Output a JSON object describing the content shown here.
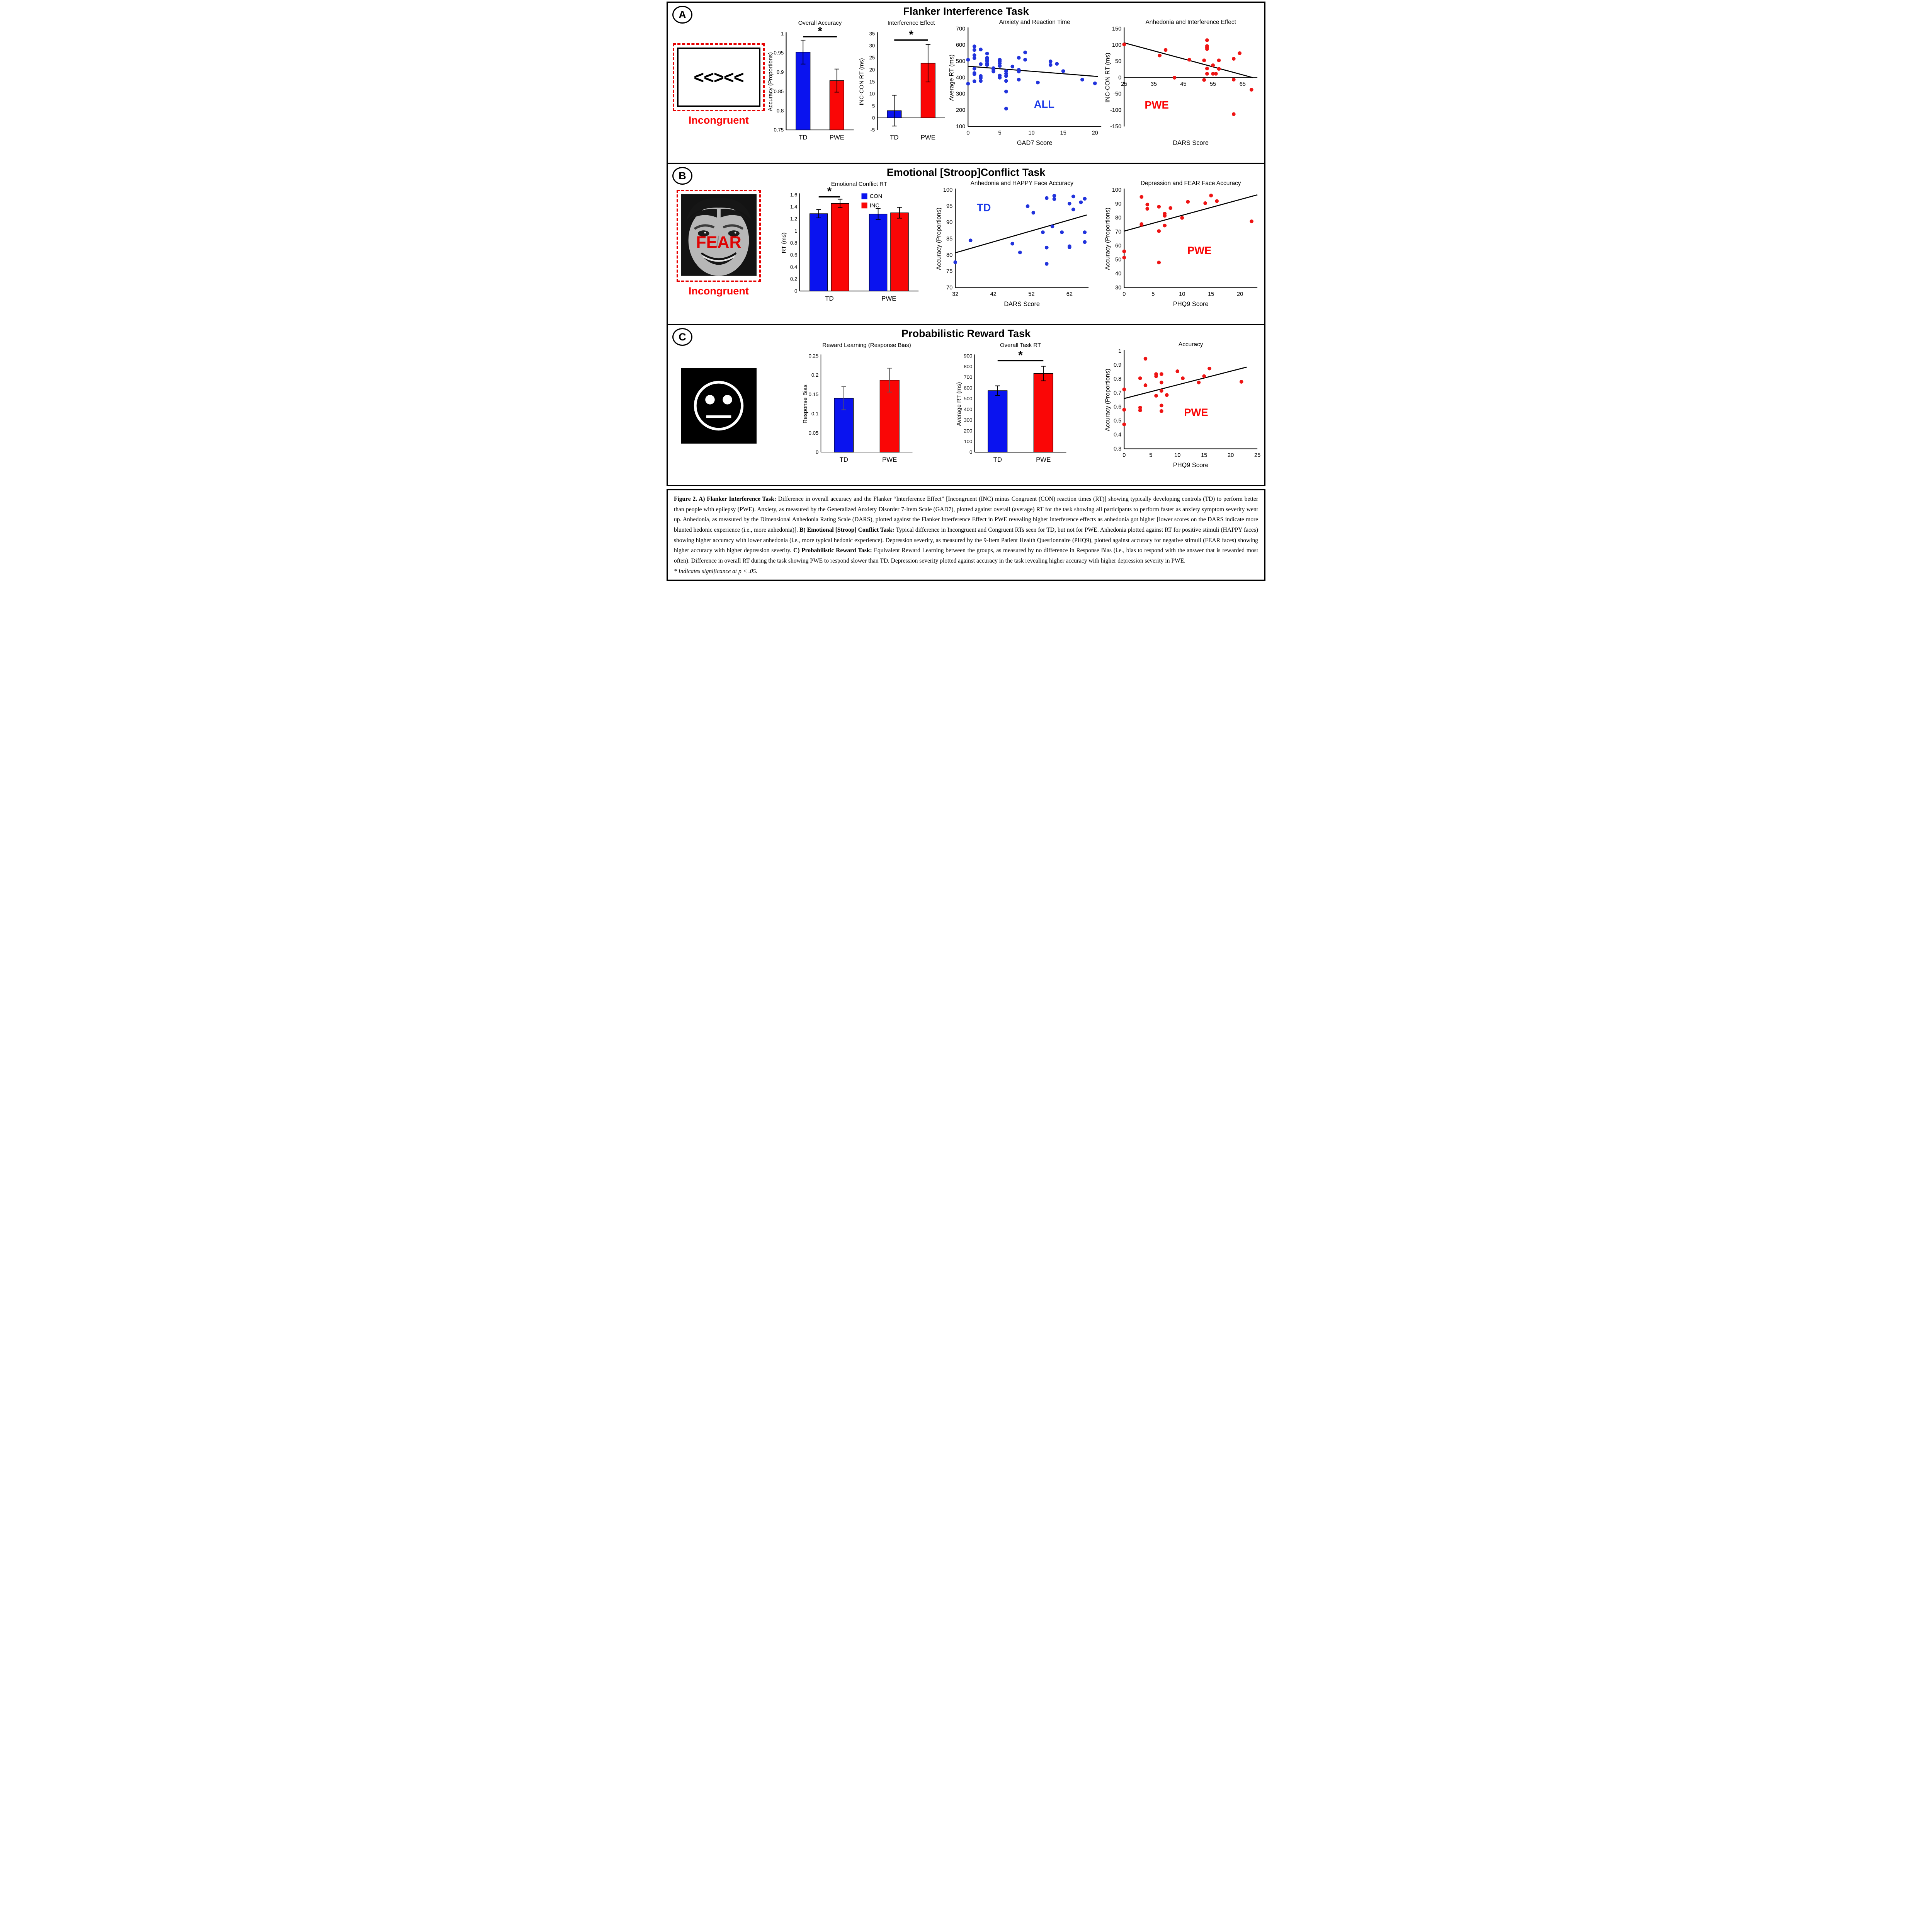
{
  "figure": {
    "panels": [
      {
        "label": "A",
        "title": "Flanker Interference Task",
        "stimulus": {
          "kind": "flanker",
          "text": "<<><<",
          "caption": "Incongruent"
        }
      },
      {
        "label": "B",
        "title": "Emotional [Stroop]Conflict Task",
        "stimulus": {
          "kind": "face",
          "overlay": "FEAR",
          "caption": "Incongruent"
        }
      },
      {
        "label": "C",
        "title": "Probabilistic Reward Task",
        "stimulus": {
          "kind": "smiley"
        }
      }
    ]
  },
  "colors": {
    "blue": "#0A13EF",
    "red": "#FA0606",
    "dot_blue": "#2133DC",
    "dot_red": "#EE1414",
    "label_blue": "#1D3BE8",
    "label_red": "#FA0606"
  },
  "chart_data": [
    {
      "id": "a1",
      "type": "bar",
      "title": "Overall Accuracy",
      "ylabel": "Accuracy (Proportions)",
      "ylim": [
        0.75,
        1
      ],
      "yticks": [
        0.75,
        0.8,
        0.85,
        0.9,
        0.95,
        1
      ],
      "categories": [
        "TD",
        "PWE"
      ],
      "values": [
        0.952,
        0.878
      ],
      "errors": [
        0.031,
        0.03
      ],
      "bar_colors": [
        "blue",
        "red"
      ],
      "sig": {
        "i1": 0,
        "i2": 1,
        "y": 0.992,
        "star": "*"
      }
    },
    {
      "id": "a2",
      "type": "bar",
      "title": "Interference Effect",
      "ylabel": "INC-CON RT (ms)",
      "ylim": [
        -5,
        35
      ],
      "yticks": [
        -5,
        0,
        5,
        10,
        15,
        20,
        25,
        30,
        35
      ],
      "categories": [
        "TD",
        "PWE"
      ],
      "values": [
        3,
        22.7
      ],
      "errors": [
        6.4,
        7.8
      ],
      "bar_colors": [
        "blue",
        "red"
      ],
      "sig": {
        "i1": 0,
        "i2": 1,
        "y": 32.3,
        "star": "*"
      }
    },
    {
      "id": "a3",
      "type": "scatter",
      "title": "Anxiety and Reaction Time",
      "xlabel": "GAD7 Score",
      "ylabel": "Average RT (ms)",
      "xlim": [
        0,
        21
      ],
      "ylim": [
        100,
        700
      ],
      "xticks": [
        0,
        5,
        10,
        15,
        20
      ],
      "yticks": [
        100,
        200,
        300,
        400,
        500,
        600,
        700
      ],
      "point_color": "dot_blue",
      "trend": [
        [
          0,
          470
        ],
        [
          20.5,
          407
        ]
      ],
      "label": {
        "text": "ALL",
        "x": 12,
        "y": 215,
        "color": "label_blue"
      },
      "points": [
        [
          0,
          510
        ],
        [
          0,
          363
        ],
        [
          1,
          592
        ],
        [
          1,
          570
        ],
        [
          1,
          538
        ],
        [
          1,
          520
        ],
        [
          1,
          455
        ],
        [
          1,
          428
        ],
        [
          1,
          422
        ],
        [
          1,
          378
        ],
        [
          2,
          573
        ],
        [
          2,
          483
        ],
        [
          2,
          410
        ],
        [
          2,
          398
        ],
        [
          2,
          380
        ],
        [
          3,
          548
        ],
        [
          3,
          522
        ],
        [
          3,
          515
        ],
        [
          3,
          503
        ],
        [
          3,
          488
        ],
        [
          3,
          478
        ],
        [
          4,
          458
        ],
        [
          4,
          448
        ],
        [
          4,
          438
        ],
        [
          5,
          510
        ],
        [
          5,
          502
        ],
        [
          5,
          488
        ],
        [
          5,
          472
        ],
        [
          5,
          413
        ],
        [
          5,
          400
        ],
        [
          6,
          440
        ],
        [
          6,
          425
        ],
        [
          6,
          410
        ],
        [
          6,
          380
        ],
        [
          6,
          315
        ],
        [
          6,
          210
        ],
        [
          7,
          468
        ],
        [
          8,
          522
        ],
        [
          8,
          448
        ],
        [
          8,
          438
        ],
        [
          8,
          388
        ],
        [
          9,
          555
        ],
        [
          9,
          510
        ],
        [
          11,
          370
        ],
        [
          13,
          500
        ],
        [
          13,
          478
        ],
        [
          14,
          485
        ],
        [
          15,
          440
        ],
        [
          18,
          388
        ],
        [
          20,
          365
        ]
      ]
    },
    {
      "id": "a4",
      "type": "scatter",
      "title": "Anhedonia and Interference Effect",
      "xlabel": "DARS Score",
      "ylabel": "INC-CON RT (ms)",
      "xlim": [
        25,
        70
      ],
      "ylim": [
        -150,
        150
      ],
      "xticks": [
        25,
        35,
        45,
        55,
        65
      ],
      "yticks": [
        -150,
        -100,
        -50,
        0,
        50,
        100,
        150
      ],
      "x_axis_at": 0,
      "point_color": "dot_red",
      "trend": [
        [
          25,
          107
        ],
        [
          68.5,
          0
        ]
      ],
      "label": {
        "text": "PWE",
        "x": 36,
        "y": -95,
        "color": "label_red"
      },
      "points": [
        [
          25,
          102
        ],
        [
          37,
          68
        ],
        [
          39,
          85
        ],
        [
          42,
          0
        ],
        [
          47,
          55
        ],
        [
          52,
          53
        ],
        [
          52,
          -7
        ],
        [
          53,
          115
        ],
        [
          53,
          97
        ],
        [
          53,
          93
        ],
        [
          53,
          88
        ],
        [
          53,
          28
        ],
        [
          53,
          12
        ],
        [
          55,
          38
        ],
        [
          55,
          12
        ],
        [
          56,
          12
        ],
        [
          57,
          53
        ],
        [
          57,
          27
        ],
        [
          62,
          58
        ],
        [
          62,
          -6
        ],
        [
          62,
          -112
        ],
        [
          64,
          75
        ],
        [
          68,
          -37
        ]
      ]
    },
    {
      "id": "b1",
      "type": "bar",
      "title": "Emotional Conflict RT",
      "ylabel": "RT (ms)",
      "ylim": [
        0,
        1.6
      ],
      "yticks": [
        0,
        0.2,
        0.4,
        0.6,
        0.8,
        1,
        1.2,
        1.4,
        1.6
      ],
      "groups": [
        "TD",
        "PWE"
      ],
      "series": [
        {
          "name": "CON",
          "color": "blue",
          "values": [
            1.285,
            1.28
          ],
          "errors": [
            0.07,
            0.09
          ]
        },
        {
          "name": "INC",
          "color": "red",
          "values": [
            1.455,
            1.3
          ],
          "errors": [
            0.07,
            0.09
          ]
        }
      ],
      "legend": true,
      "sig": {
        "i1": 0,
        "i2": 1,
        "y": 1.565,
        "star": "*"
      }
    },
    {
      "id": "b2",
      "type": "scatter",
      "title": "Anhedonia and HAPPY Face Accuracy",
      "xlabel": "DARS Score",
      "ylabel": "Accuracy (Proportions)",
      "xlim": [
        32,
        67
      ],
      "ylim": [
        70,
        100
      ],
      "xticks": [
        32,
        42,
        52,
        62
      ],
      "yticks": [
        70,
        75,
        80,
        85,
        90,
        95,
        100
      ],
      "point_color": "dot_blue",
      "trend": [
        [
          32,
          80.7
        ],
        [
          66.5,
          92.3
        ]
      ],
      "label": {
        "text": "TD",
        "x": 39.5,
        "y": 93.5,
        "color": "label_blue"
      },
      "points": [
        [
          32,
          77.8
        ],
        [
          36,
          84.5
        ],
        [
          47,
          83.5
        ],
        [
          49,
          80.8
        ],
        [
          51,
          95
        ],
        [
          52.5,
          93
        ],
        [
          55,
          87
        ],
        [
          56,
          97.5
        ],
        [
          56,
          82.3
        ],
        [
          56,
          77.3
        ],
        [
          57.5,
          88.8
        ],
        [
          58,
          98.2
        ],
        [
          58,
          97.2
        ],
        [
          60,
          87
        ],
        [
          62,
          95.8
        ],
        [
          62,
          82.7
        ],
        [
          62,
          82.4
        ],
        [
          63,
          98
        ],
        [
          63,
          94
        ],
        [
          65,
          96.2
        ],
        [
          66,
          97.3
        ],
        [
          66,
          87
        ],
        [
          66,
          84
        ]
      ]
    },
    {
      "id": "b3",
      "type": "scatter",
      "title": "Depression and FEAR Face Accuracy",
      "xlabel": "PHQ9 Score",
      "ylabel": "Accuracy (Proportions)",
      "xlim": [
        0,
        23
      ],
      "ylim": [
        30,
        100
      ],
      "xticks": [
        0,
        5,
        10,
        15,
        20
      ],
      "yticks": [
        30,
        40,
        50,
        60,
        70,
        80,
        90,
        100
      ],
      "point_color": "dot_red",
      "trend": [
        [
          0,
          70.5
        ],
        [
          23,
          96.5
        ]
      ],
      "label": {
        "text": "PWE",
        "x": 13,
        "y": 54,
        "color": "label_red"
      },
      "points": [
        [
          0,
          56
        ],
        [
          0,
          51.5
        ],
        [
          3,
          95
        ],
        [
          3,
          75.5
        ],
        [
          3,
          75
        ],
        [
          4,
          89.5
        ],
        [
          4,
          86.5
        ],
        [
          6,
          88
        ],
        [
          6,
          70.5
        ],
        [
          6,
          48
        ],
        [
          7,
          83
        ],
        [
          7,
          81.5
        ],
        [
          7,
          74.5
        ],
        [
          8,
          87
        ],
        [
          10,
          80
        ],
        [
          11,
          91.5
        ],
        [
          14,
          90.5
        ],
        [
          15,
          96
        ],
        [
          16,
          92
        ],
        [
          22,
          77.5
        ]
      ]
    },
    {
      "id": "c1",
      "type": "bar",
      "title": "Reward Learning (Response Bias)",
      "ylabel": "Response Bias",
      "ylim": [
        0,
        0.25
      ],
      "yticks": [
        0,
        0.05,
        0.1,
        0.15,
        0.2,
        0.25
      ],
      "categories": [
        "TD",
        "PWE"
      ],
      "values": [
        0.14,
        0.187
      ],
      "errors": [
        0.03,
        0.031
      ],
      "bar_colors": [
        "blue",
        "red"
      ],
      "err_color": "#595959",
      "axis_color": "#7f7f7f"
    },
    {
      "id": "c2",
      "type": "bar",
      "title": "Overall Task RT",
      "ylabel": "Average RT (ms)",
      "ylim": [
        0,
        900
      ],
      "yticks": [
        0,
        100,
        200,
        300,
        400,
        500,
        600,
        700,
        800,
        900
      ],
      "categories": [
        "TD",
        "PWE"
      ],
      "values": [
        575,
        735
      ],
      "errors": [
        45,
        68
      ],
      "bar_colors": [
        "blue",
        "red"
      ],
      "sig": {
        "i1": 0,
        "i2": 1,
        "y": 855,
        "star": "*"
      }
    },
    {
      "id": "c3",
      "type": "scatter",
      "title": "Accuracy",
      "xlabel": "PHQ9 Score",
      "ylabel": "Accuracy (Proportions)",
      "xlim": [
        0,
        25
      ],
      "ylim": [
        0.3,
        1
      ],
      "xticks": [
        0,
        5,
        10,
        15,
        20,
        25
      ],
      "yticks": [
        0.3,
        0.4,
        0.5,
        0.6,
        0.7,
        0.8,
        0.9,
        1
      ],
      "point_color": "dot_red",
      "trend": [
        [
          0,
          0.66
        ],
        [
          23,
          0.885
        ]
      ],
      "label": {
        "text": "PWE",
        "x": 13.5,
        "y": 0.535,
        "color": "label_red"
      },
      "points": [
        [
          0,
          0.725
        ],
        [
          0,
          0.58
        ],
        [
          0,
          0.475
        ],
        [
          3,
          0.805
        ],
        [
          3,
          0.595
        ],
        [
          3,
          0.575
        ],
        [
          4,
          0.945
        ],
        [
          4,
          0.755
        ],
        [
          6,
          0.835
        ],
        [
          6,
          0.82
        ],
        [
          6,
          0.68
        ],
        [
          7,
          0.835
        ],
        [
          7,
          0.775
        ],
        [
          7,
          0.715
        ],
        [
          7,
          0.61
        ],
        [
          7,
          0.57
        ],
        [
          8,
          0.685
        ],
        [
          10,
          0.855
        ],
        [
          11,
          0.805
        ],
        [
          14,
          0.775
        ],
        [
          15,
          0.82
        ],
        [
          16,
          0.875
        ],
        [
          22,
          0.78
        ]
      ]
    }
  ],
  "caption": {
    "segments": [
      {
        "bold": true,
        "text": "Figure 2. A) Flanker Interference Task: "
      },
      {
        "text": "Difference in overall accuracy and the Flanker “Interference Effect” [Incongruent (INC) minus Congruent (CON) reaction times (RT)] showing typically developing controls (TD) to perform better than people with epilepsy (PWE). Anxiety, as measured by the Generalized Anxiety Disorder 7-Item Scale (GAD7), plotted against overall (average) RT for the task showing all participants to perform faster as anxiety symptom severity went up. Anhedonia, as measured by the Dimensional Anhedonia Rating Scale (DARS), plotted against the Flanker Interference Effect in PWE revealing higher interference effects as anhedonia got higher [lower scores on the DARS indicate more blunted hedonic experience (i.e., more anhedonia)]. "
      },
      {
        "bold": true,
        "text": "B) Emotional [Stroop] Conflict Task: "
      },
      {
        "text": "Typical difference in Incongruent and Congruent RTs seen for TD, but not for PWE. Anhedonia plotted against RT for positive stimuli (HAPPY faces) showing higher accuracy with lower anhedonia (i.e., more typical hedonic experience). Depression severity, as measured by the 9-Item Patient Health Questionnaire (PHQ9), plotted against accuracy for negative stimuli (FEAR faces) showing higher accuracy with higher depression severity. "
      },
      {
        "bold": true,
        "text": "C) Probabilistic Reward Task: "
      },
      {
        "text": "Equivalent Reward Learning between the groups, as measured by no difference in Response Bias (i.e., bias to respond with the answer that is rewarded most often). Difference in overall RT during the task showing PWE to respond slower than TD. Depression severity plotted against accuracy in the task revealing higher accuracy with higher depression severity in PWE."
      }
    ],
    "footnote": "* Indicates significance at p < .05."
  }
}
